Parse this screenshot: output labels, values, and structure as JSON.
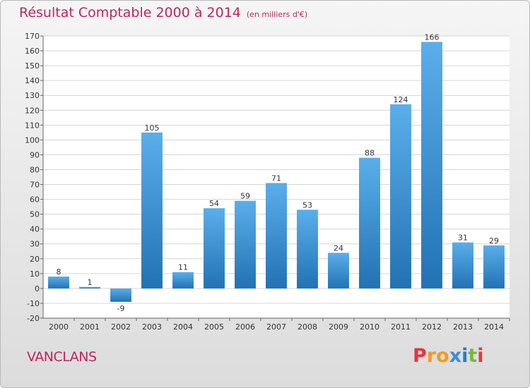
{
  "header": {
    "title": "Résultat Comptable 2000 à 2014",
    "unit": "(en milliers d'€)"
  },
  "footer": {
    "commune": "VANCLANS",
    "logo": "Proxiti"
  },
  "colors": {
    "title": "#c0245e",
    "bar_top": "#5aaeea",
    "bar_bottom": "#2272b4",
    "logo_letters": [
      "#e8343c",
      "#f39a1e",
      "#f39a1e",
      "#3a8ed8",
      "#2a7cc4",
      "#7ab63e",
      "#e8343c"
    ]
  },
  "chart_data": {
    "type": "bar",
    "title": "Résultat Comptable 2000 à 2014",
    "subtitle": "(en milliers d'€)",
    "xlabel": "",
    "ylabel": "",
    "categories": [
      "2000",
      "2001",
      "2002",
      "2003",
      "2004",
      "2005",
      "2006",
      "2007",
      "2008",
      "2009",
      "2010",
      "2011",
      "2012",
      "2013",
      "2014"
    ],
    "values": [
      8,
      1,
      -9,
      105,
      11,
      54,
      59,
      71,
      53,
      24,
      88,
      124,
      166,
      31,
      29
    ],
    "data_labels": [
      "8",
      "1",
      "-9",
      "105",
      "11",
      "54",
      "59",
      "71",
      "53",
      "24",
      "88",
      "124",
      "166",
      "31",
      "29"
    ],
    "ylim": [
      -20,
      170
    ],
    "yticks": [
      -20,
      -10,
      0,
      10,
      20,
      30,
      40,
      50,
      60,
      70,
      80,
      90,
      100,
      110,
      120,
      130,
      140,
      150,
      160,
      170
    ],
    "grid": true
  }
}
